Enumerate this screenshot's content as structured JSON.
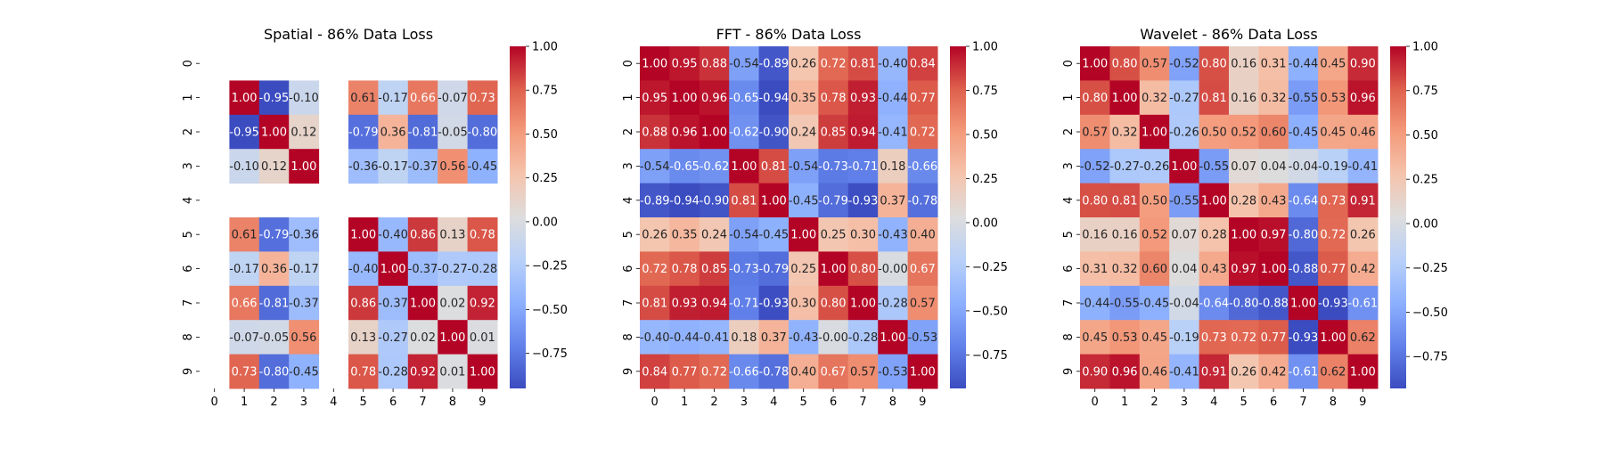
{
  "chart_data": [
    {
      "type": "heatmap",
      "title": "Spatial - 86% Data Loss",
      "x_ticks": [
        "0",
        "1",
        "2",
        "3",
        "4",
        "5",
        "6",
        "7",
        "8",
        "9"
      ],
      "y_ticks": [
        "0",
        "1",
        "2",
        "3",
        "4",
        "5",
        "6",
        "7",
        "8",
        "9"
      ],
      "colorbar_ticks": [
        1.0,
        0.75,
        0.5,
        0.25,
        0.0,
        -0.25,
        -0.5,
        -0.75
      ],
      "vmin": -0.95,
      "vmax": 1.0,
      "colormap": "coolwarm",
      "values": [
        [
          null,
          null,
          null,
          null,
          null,
          null,
          null,
          null,
          null,
          null
        ],
        [
          null,
          1.0,
          -0.95,
          -0.1,
          null,
          0.61,
          -0.17,
          0.66,
          -0.07,
          0.73
        ],
        [
          null,
          -0.95,
          1.0,
          0.12,
          null,
          -0.79,
          0.36,
          -0.81,
          -0.05,
          -0.8
        ],
        [
          null,
          -0.1,
          0.12,
          1.0,
          null,
          -0.36,
          -0.17,
          -0.37,
          0.56,
          -0.45
        ],
        [
          null,
          null,
          null,
          null,
          null,
          null,
          null,
          null,
          null,
          null
        ],
        [
          null,
          0.61,
          -0.79,
          -0.36,
          null,
          1.0,
          -0.4,
          0.86,
          0.13,
          0.78
        ],
        [
          null,
          -0.17,
          0.36,
          -0.17,
          null,
          -0.4,
          1.0,
          -0.37,
          -0.27,
          -0.28
        ],
        [
          null,
          0.66,
          -0.81,
          -0.37,
          null,
          0.86,
          -0.37,
          1.0,
          0.02,
          0.92
        ],
        [
          null,
          -0.07,
          -0.05,
          0.56,
          null,
          0.13,
          -0.27,
          0.02,
          1.0,
          0.01
        ],
        [
          null,
          0.73,
          -0.8,
          -0.45,
          null,
          0.78,
          -0.28,
          0.92,
          0.01,
          1.0
        ]
      ]
    },
    {
      "type": "heatmap",
      "title": "FFT - 86% Data Loss",
      "x_ticks": [
        "0",
        "1",
        "2",
        "3",
        "4",
        "5",
        "6",
        "7",
        "8",
        "9"
      ],
      "y_ticks": [
        "0",
        "1",
        "2",
        "3",
        "4",
        "5",
        "6",
        "7",
        "8",
        "9"
      ],
      "colorbar_ticks": [
        1.0,
        0.75,
        0.5,
        0.25,
        0.0,
        -0.25,
        -0.5,
        -0.75
      ],
      "vmin": -0.94,
      "vmax": 1.0,
      "colormap": "coolwarm",
      "values": [
        [
          1.0,
          0.95,
          0.88,
          -0.54,
          -0.89,
          0.26,
          0.72,
          0.81,
          -0.4,
          0.84
        ],
        [
          0.95,
          1.0,
          0.96,
          -0.65,
          -0.94,
          0.35,
          0.78,
          0.93,
          -0.44,
          0.77
        ],
        [
          0.88,
          0.96,
          1.0,
          -0.62,
          -0.9,
          0.24,
          0.85,
          0.94,
          -0.41,
          0.72
        ],
        [
          -0.54,
          -0.65,
          -0.62,
          1.0,
          0.81,
          -0.54,
          -0.73,
          -0.71,
          0.18,
          -0.66
        ],
        [
          -0.89,
          -0.94,
          -0.9,
          0.81,
          1.0,
          -0.45,
          -0.79,
          -0.93,
          0.37,
          -0.78
        ],
        [
          0.26,
          0.35,
          0.24,
          -0.54,
          -0.45,
          1.0,
          0.25,
          0.3,
          -0.43,
          0.4
        ],
        [
          0.72,
          0.78,
          0.85,
          -0.73,
          -0.79,
          0.25,
          1.0,
          0.8,
          -0.0,
          0.67
        ],
        [
          0.81,
          0.93,
          0.94,
          -0.71,
          -0.93,
          0.3,
          0.8,
          1.0,
          -0.28,
          0.57
        ],
        [
          -0.4,
          -0.44,
          -0.41,
          0.18,
          0.37,
          -0.43,
          -0.0,
          -0.28,
          1.0,
          -0.53
        ],
        [
          0.84,
          0.77,
          0.72,
          -0.66,
          -0.78,
          0.4,
          0.67,
          0.57,
          -0.53,
          1.0
        ]
      ]
    },
    {
      "type": "heatmap",
      "title": "Wavelet - 86% Data Loss",
      "x_ticks": [
        "0",
        "1",
        "2",
        "3",
        "4",
        "5",
        "6",
        "7",
        "8",
        "9"
      ],
      "y_ticks": [
        "0",
        "1",
        "2",
        "3",
        "4",
        "5",
        "6",
        "7",
        "8",
        "9"
      ],
      "colorbar_ticks": [
        1.0,
        0.75,
        0.5,
        0.25,
        0.0,
        -0.25,
        -0.5,
        -0.75
      ],
      "vmin": -0.93,
      "vmax": 1.0,
      "colormap": "coolwarm",
      "values": [
        [
          1.0,
          0.8,
          0.57,
          -0.52,
          0.8,
          0.16,
          0.31,
          -0.44,
          0.45,
          0.9
        ],
        [
          0.8,
          1.0,
          0.32,
          -0.27,
          0.81,
          0.16,
          0.32,
          -0.55,
          0.53,
          0.96
        ],
        [
          0.57,
          0.32,
          1.0,
          -0.26,
          0.5,
          0.52,
          0.6,
          -0.45,
          0.45,
          0.46
        ],
        [
          -0.52,
          -0.27,
          -0.26,
          1.0,
          -0.55,
          0.07,
          0.04,
          -0.04,
          -0.19,
          -0.41
        ],
        [
          0.8,
          0.81,
          0.5,
          -0.55,
          1.0,
          0.28,
          0.43,
          -0.64,
          0.73,
          0.91
        ],
        [
          0.16,
          0.16,
          0.52,
          0.07,
          0.28,
          1.0,
          0.97,
          -0.8,
          0.72,
          0.26
        ],
        [
          0.31,
          0.32,
          0.6,
          0.04,
          0.43,
          0.97,
          1.0,
          -0.88,
          0.77,
          0.42
        ],
        [
          -0.44,
          -0.55,
          -0.45,
          -0.04,
          -0.64,
          -0.8,
          -0.88,
          1.0,
          -0.93,
          -0.61
        ],
        [
          0.45,
          0.53,
          0.45,
          -0.19,
          0.73,
          0.72,
          0.77,
          -0.93,
          1.0,
          0.62
        ],
        [
          0.9,
          0.96,
          0.46,
          -0.41,
          0.91,
          0.26,
          0.42,
          -0.61,
          0.62,
          1.0
        ]
      ]
    }
  ]
}
